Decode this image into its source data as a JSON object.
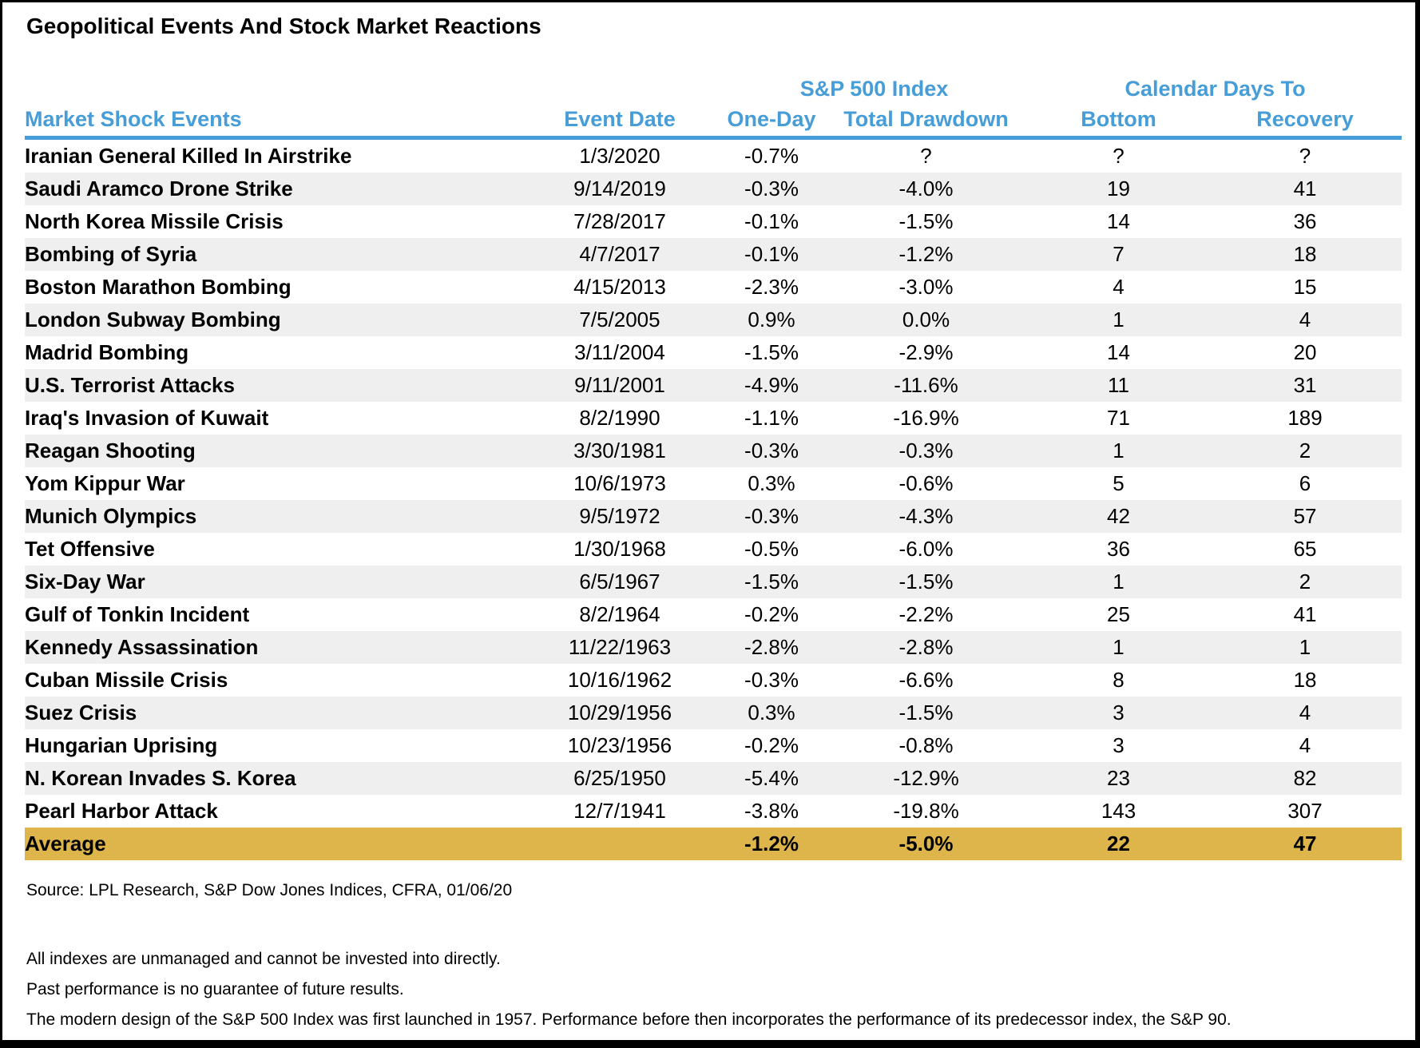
{
  "title": "Geopolitical Events And Stock Market Reactions",
  "colors": {
    "accent_blue": "#469DD7",
    "header_rule_blue": "#469DD7",
    "average_row_gold": "#DDB54A",
    "row_stripe_gray": "#EFEFEF",
    "text_black": "#000000",
    "frame_black": "#000000"
  },
  "chart_data": {
    "type": "table",
    "title": "Geopolitical Events And Stock Market Reactions",
    "group_headers": [
      {
        "label": "S&P 500 Index",
        "spans": [
          "One-Day",
          "Total Drawdown"
        ]
      },
      {
        "label": "Calendar Days To",
        "spans": [
          "Bottom",
          "Recovery"
        ]
      }
    ],
    "columns": [
      "Market Shock Events",
      "Event Date",
      "One-Day",
      "Total Drawdown",
      "Bottom",
      "Recovery"
    ],
    "rows": [
      [
        "Iranian General Killed In Airstrike",
        "1/3/2020",
        "-0.7%",
        "?",
        "?",
        "?"
      ],
      [
        "Saudi Aramco Drone Strike",
        "9/14/2019",
        "-0.3%",
        "-4.0%",
        "19",
        "41"
      ],
      [
        "North Korea Missile Crisis",
        "7/28/2017",
        "-0.1%",
        "-1.5%",
        "14",
        "36"
      ],
      [
        "Bombing of Syria",
        "4/7/2017",
        "-0.1%",
        "-1.2%",
        "7",
        "18"
      ],
      [
        "Boston Marathon Bombing",
        "4/15/2013",
        "-2.3%",
        "-3.0%",
        "4",
        "15"
      ],
      [
        "London Subway Bombing",
        "7/5/2005",
        "0.9%",
        "0.0%",
        "1",
        "4"
      ],
      [
        "Madrid Bombing",
        "3/11/2004",
        "-1.5%",
        "-2.9%",
        "14",
        "20"
      ],
      [
        "U.S. Terrorist Attacks",
        "9/11/2001",
        "-4.9%",
        "-11.6%",
        "11",
        "31"
      ],
      [
        "Iraq's Invasion of Kuwait",
        "8/2/1990",
        "-1.1%",
        "-16.9%",
        "71",
        "189"
      ],
      [
        "Reagan Shooting",
        "3/30/1981",
        "-0.3%",
        "-0.3%",
        "1",
        "2"
      ],
      [
        "Yom Kippur War",
        "10/6/1973",
        "0.3%",
        "-0.6%",
        "5",
        "6"
      ],
      [
        "Munich Olympics",
        "9/5/1972",
        "-0.3%",
        "-4.3%",
        "42",
        "57"
      ],
      [
        "Tet Offensive",
        "1/30/1968",
        "-0.5%",
        "-6.0%",
        "36",
        "65"
      ],
      [
        "Six-Day War",
        "6/5/1967",
        "-1.5%",
        "-1.5%",
        "1",
        "2"
      ],
      [
        "Gulf of Tonkin Incident",
        "8/2/1964",
        "-0.2%",
        "-2.2%",
        "25",
        "41"
      ],
      [
        "Kennedy Assassination",
        "11/22/1963",
        "-2.8%",
        "-2.8%",
        "1",
        "1"
      ],
      [
        "Cuban Missile Crisis",
        "10/16/1962",
        "-0.3%",
        "-6.6%",
        "8",
        "18"
      ],
      [
        "Suez Crisis",
        "10/29/1956",
        "0.3%",
        "-1.5%",
        "3",
        "4"
      ],
      [
        "Hungarian Uprising",
        "10/23/1956",
        "-0.2%",
        "-0.8%",
        "3",
        "4"
      ],
      [
        "N. Korean Invades S. Korea",
        "6/25/1950",
        "-5.4%",
        "-12.9%",
        "23",
        "82"
      ],
      [
        "Pearl Harbor Attack",
        "12/7/1941",
        "-3.8%",
        "-19.8%",
        "143",
        "307"
      ]
    ],
    "average_row": [
      "Average",
      "",
      "-1.2%",
      "-5.0%",
      "22",
      "47"
    ],
    "layout_hints": {
      "row_striping": "alternating white / light gray",
      "average_row_highlight": "gold",
      "header_text_color": "blue",
      "grid": "off"
    }
  },
  "footer": {
    "source": "Source: LPL Research, S&P Dow Jones Indices, CFRA, 01/06/20",
    "disclaimers": [
      "All indexes are unmanaged and cannot be invested into directly.",
      "Past performance is no guarantee of future results.",
      "The modern design of the S&P 500 Index was first launched in 1957. Performance before then incorporates the performance of its predecessor index, the S&P 90."
    ]
  }
}
